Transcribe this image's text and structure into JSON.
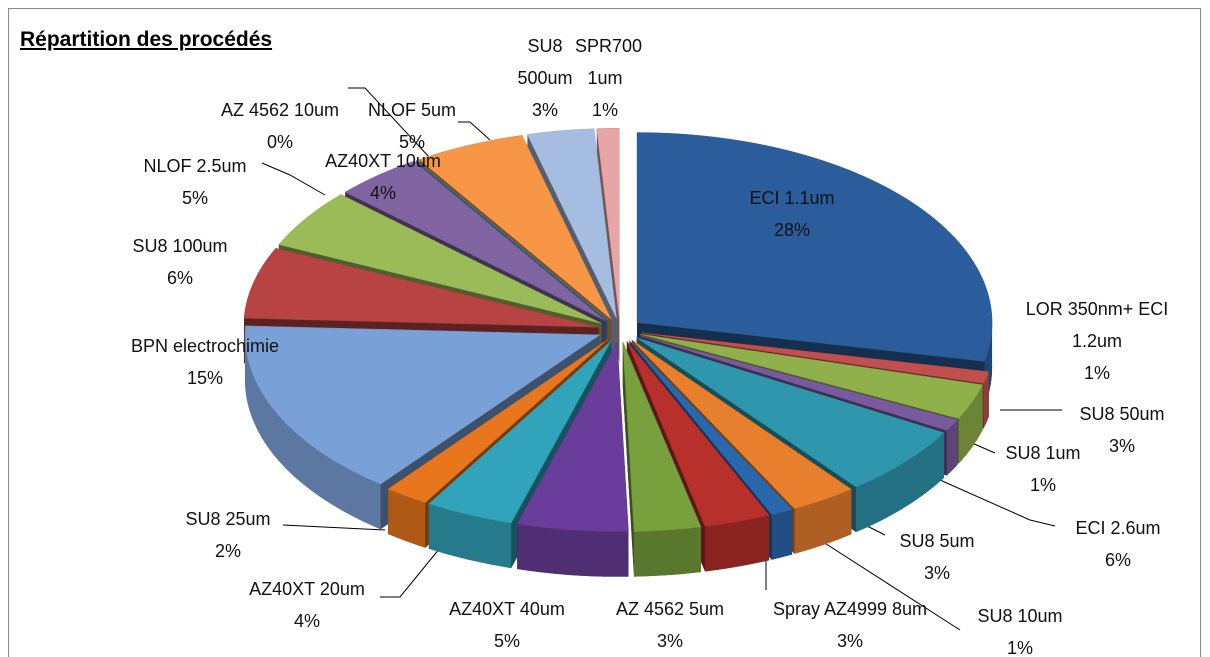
{
  "chart_data": {
    "type": "pie3d",
    "title": "Répartition des procédés",
    "categories": [
      "ECI 1.1um",
      "LOR 350nm+ ECI 1.2um",
      "SU8 50um",
      "SU8 1um",
      "ECI 2.6um",
      "SU8 5um",
      "SU8 10um",
      "Spray AZ4999 8um",
      "AZ 4562 5um",
      "AZ40XT 40um",
      "AZ40XT 20um",
      "SU8 25um",
      "BPN electrochimie",
      "SU8 100um",
      "NLOF 2.5um",
      "AZ40XT 10um",
      "AZ 4562 10um",
      "NLOF 5um",
      "SU8 500um",
      "SPR700 1um"
    ],
    "values": [
      28,
      1,
      3,
      1,
      6,
      3,
      1,
      3,
      3,
      5,
      4,
      2,
      15,
      6,
      5,
      4,
      0,
      5,
      3,
      1
    ],
    "value_labels": [
      "28%",
      "1%",
      "3%",
      "1%",
      "6%",
      "3%",
      "1%",
      "3%",
      "3%",
      "5%",
      "4%",
      "2%",
      "15%",
      "6%",
      "5%",
      "4%",
      "0%",
      "5%",
      "3%",
      "1%"
    ],
    "colors": [
      "#2b5d9c",
      "#c0504d",
      "#8fb04a",
      "#7a5a9e",
      "#2f97ad",
      "#e87f2c",
      "#2a68ad",
      "#b8302c",
      "#78a03c",
      "#6a3d9a",
      "#31a3ba",
      "#e8761c",
      "#7aa0d8",
      "#b84343",
      "#9bbb59",
      "#8064a2",
      "#4bacc6",
      "#f79646",
      "#a5bde0",
      "#e6a6a6"
    ]
  }
}
